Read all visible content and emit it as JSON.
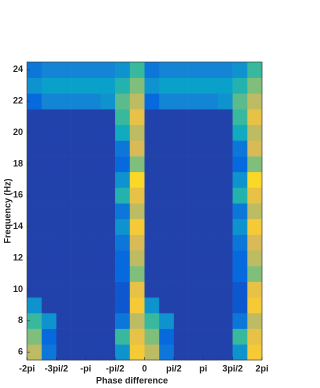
{
  "chart_data": {
    "type": "heatmap",
    "xlabel": "Phase difference",
    "ylabel": "Frequency (Hz)",
    "xlim": [
      -2,
      2
    ],
    "ylim": [
      5.5,
      24.5
    ],
    "xticks": [
      {
        "value": -2,
        "label": "-2pi"
      },
      {
        "value": -1.5,
        "label": "-3pi/2"
      },
      {
        "value": -1,
        "label": "-pi"
      },
      {
        "value": -0.5,
        "label": "-pi/2"
      },
      0,
      {
        "value": 0.5,
        "label": "pi/2"
      },
      {
        "value": 1,
        "label": "pi"
      },
      {
        "value": 1.5,
        "label": "3pi/2"
      },
      {
        "value": 2,
        "label": "2pi"
      }
    ],
    "yticks": [
      6,
      8,
      10,
      12,
      14,
      16,
      18,
      20,
      22,
      24
    ],
    "xbins": [
      -2,
      -1.75,
      -1.5,
      -1.25,
      -1,
      -0.75,
      -0.5,
      -0.25,
      0,
      0.25,
      0.5,
      0.75,
      1,
      1.25,
      1.5,
      1.75,
      2
    ],
    "ybins": [
      5.5,
      6.5,
      7.5,
      8.5,
      9.5,
      10.5,
      11.5,
      12.5,
      13.5,
      14.5,
      15.5,
      16.5,
      17.5,
      18.5,
      19.5,
      20.5,
      21.5,
      22.5,
      23.5,
      24.5
    ],
    "colormap": [
      "#352a87",
      "#0363e1",
      "#1485d4",
      "#06a7c6",
      "#38b99e",
      "#92bf73",
      "#d9ba56",
      "#fcce2e",
      "#f9fb0e"
    ],
    "z": [
      [
        0.7,
        0.2,
        0.05,
        0.05,
        0.05,
        0.05,
        0.3,
        0.85,
        0.7,
        0.2,
        0.05,
        0.05,
        0.05,
        0.05,
        0.3,
        0.85
      ],
      [
        0.6,
        0.15,
        0.05,
        0.05,
        0.05,
        0.05,
        0.5,
        0.8,
        0.6,
        0.15,
        0.05,
        0.05,
        0.05,
        0.05,
        0.5,
        0.8
      ],
      [
        0.5,
        0.3,
        0.05,
        0.05,
        0.05,
        0.05,
        0.2,
        0.7,
        0.5,
        0.3,
        0.05,
        0.05,
        0.05,
        0.05,
        0.2,
        0.7
      ],
      [
        0.3,
        0.05,
        0.05,
        0.05,
        0.05,
        0.05,
        0.1,
        0.85,
        0.3,
        0.05,
        0.05,
        0.05,
        0.05,
        0.05,
        0.1,
        0.85
      ],
      [
        0.05,
        0.05,
        0.05,
        0.05,
        0.05,
        0.05,
        0.1,
        0.8,
        0.05,
        0.05,
        0.05,
        0.05,
        0.05,
        0.05,
        0.1,
        0.8
      ],
      [
        0.05,
        0.05,
        0.05,
        0.05,
        0.05,
        0.05,
        0.15,
        0.6,
        0.05,
        0.05,
        0.05,
        0.05,
        0.05,
        0.05,
        0.15,
        0.6
      ],
      [
        0.05,
        0.05,
        0.05,
        0.05,
        0.05,
        0.05,
        0.15,
        0.7,
        0.05,
        0.05,
        0.05,
        0.05,
        0.05,
        0.05,
        0.15,
        0.7
      ],
      [
        0.05,
        0.05,
        0.05,
        0.05,
        0.05,
        0.05,
        0.2,
        0.75,
        0.05,
        0.05,
        0.05,
        0.05,
        0.05,
        0.05,
        0.2,
        0.75
      ],
      [
        0.05,
        0.05,
        0.05,
        0.05,
        0.05,
        0.05,
        0.3,
        0.85,
        0.05,
        0.05,
        0.05,
        0.05,
        0.05,
        0.05,
        0.3,
        0.85
      ],
      [
        0.05,
        0.05,
        0.05,
        0.05,
        0.05,
        0.05,
        0.2,
        0.7,
        0.05,
        0.05,
        0.05,
        0.05,
        0.05,
        0.05,
        0.2,
        0.7
      ],
      [
        0.05,
        0.05,
        0.05,
        0.05,
        0.05,
        0.05,
        0.45,
        0.8,
        0.05,
        0.05,
        0.05,
        0.05,
        0.05,
        0.05,
        0.45,
        0.8
      ],
      [
        0.05,
        0.05,
        0.05,
        0.05,
        0.05,
        0.05,
        0.3,
        0.9,
        0.05,
        0.05,
        0.05,
        0.05,
        0.05,
        0.05,
        0.3,
        0.9
      ],
      [
        0.05,
        0.05,
        0.05,
        0.05,
        0.05,
        0.05,
        0.15,
        0.6,
        0.05,
        0.05,
        0.05,
        0.05,
        0.05,
        0.05,
        0.15,
        0.6
      ],
      [
        0.05,
        0.05,
        0.05,
        0.05,
        0.05,
        0.05,
        0.2,
        0.75,
        0.05,
        0.05,
        0.05,
        0.05,
        0.05,
        0.05,
        0.2,
        0.75
      ],
      [
        0.05,
        0.05,
        0.05,
        0.05,
        0.05,
        0.05,
        0.4,
        0.7,
        0.05,
        0.05,
        0.05,
        0.05,
        0.05,
        0.05,
        0.4,
        0.7
      ],
      [
        0.05,
        0.05,
        0.05,
        0.05,
        0.05,
        0.05,
        0.5,
        0.8,
        0.05,
        0.05,
        0.05,
        0.05,
        0.05,
        0.05,
        0.5,
        0.8
      ],
      [
        0.15,
        0.25,
        0.25,
        0.25,
        0.25,
        0.3,
        0.55,
        0.7,
        0.15,
        0.25,
        0.25,
        0.25,
        0.25,
        0.3,
        0.55,
        0.7
      ],
      [
        0.3,
        0.35,
        0.35,
        0.35,
        0.35,
        0.35,
        0.45,
        0.6,
        0.3,
        0.35,
        0.35,
        0.35,
        0.35,
        0.35,
        0.45,
        0.6
      ],
      [
        0.2,
        0.25,
        0.25,
        0.25,
        0.25,
        0.25,
        0.3,
        0.5,
        0.2,
        0.25,
        0.25,
        0.25,
        0.25,
        0.25,
        0.3,
        0.5
      ]
    ]
  }
}
